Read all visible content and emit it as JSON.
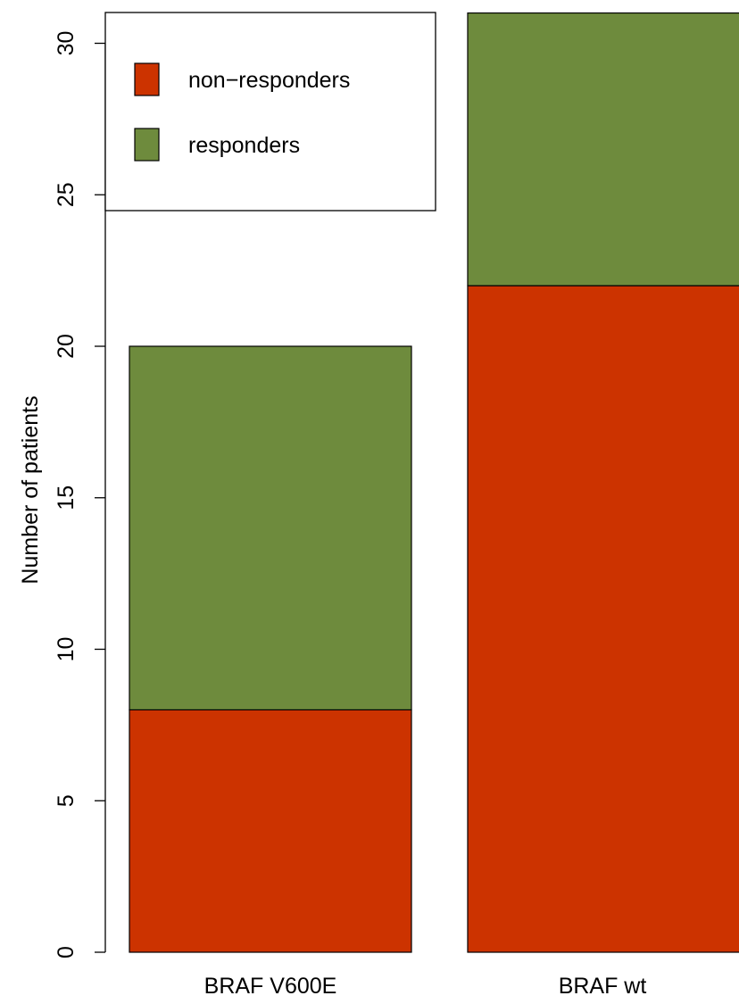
{
  "chart_data": {
    "type": "bar",
    "stacked": true,
    "categories": [
      "BRAF V600E",
      "BRAF wt"
    ],
    "series": [
      {
        "name": "non−responders",
        "values": [
          8,
          22
        ],
        "color": "#CC3300"
      },
      {
        "name": "responders",
        "values": [
          12,
          9
        ],
        "color": "#6E8B3D"
      }
    ],
    "title": "",
    "xlabel": "",
    "ylabel": "Number of patients",
    "ylim": [
      0,
      31
    ],
    "yticks": [
      0,
      5,
      10,
      15,
      20,
      25,
      30
    ],
    "grid": false,
    "legend_position": "top-left"
  }
}
